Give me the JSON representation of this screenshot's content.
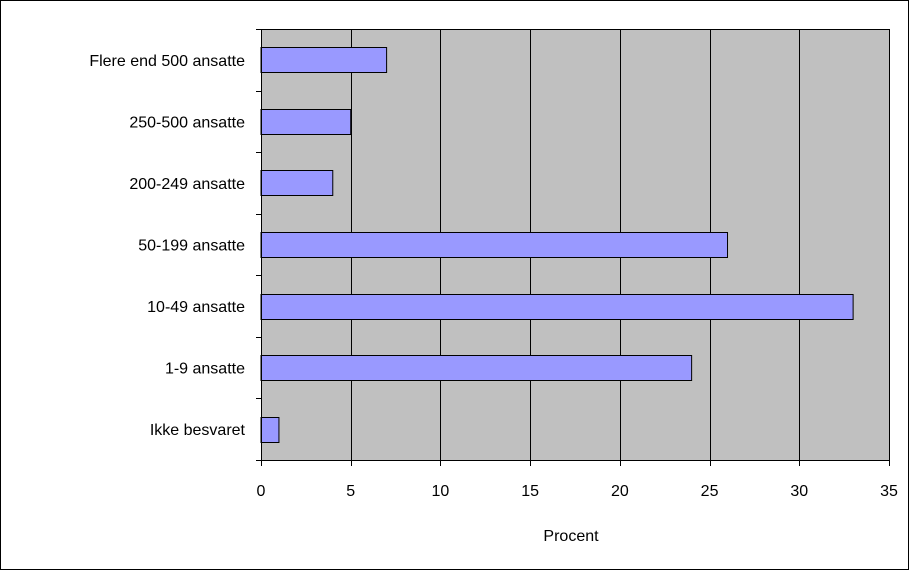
{
  "chart_data": {
    "type": "bar",
    "orientation": "horizontal",
    "categories": [
      "Flere end 500 ansatte",
      "250-500 ansatte",
      "200-249 ansatte",
      "50-199 ansatte",
      "10-49 ansatte",
      "1-9 ansatte",
      "Ikke besvaret"
    ],
    "values": [
      7,
      5,
      4,
      26,
      33,
      24,
      1
    ],
    "xlabel": "Procent",
    "ylabel": "",
    "title": "",
    "xlim": [
      0,
      35
    ],
    "xticks": [
      0,
      5,
      10,
      15,
      20,
      25,
      30,
      35
    ],
    "grid": "vertical",
    "legend": "none",
    "colors": {
      "bar_fill": "#9999ff",
      "bar_stroke": "#000000",
      "plot_background": "#c0c0c0"
    }
  }
}
